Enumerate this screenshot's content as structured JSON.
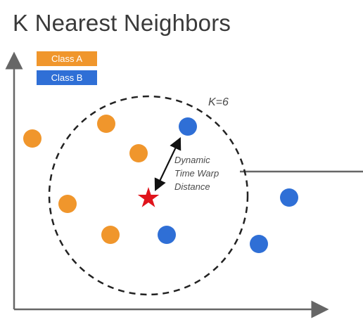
{
  "title": "K Nearest Neighbors",
  "legend": [
    {
      "label": "Class A",
      "color": "#f0962c"
    },
    {
      "label": "Class B",
      "color": "#2f6fd6"
    }
  ],
  "k_label": "K=6",
  "distance_label": [
    "Dynamic",
    "Time Warp",
    "Distance"
  ],
  "query_marker": {
    "shape": "star",
    "color": "#e0141c"
  },
  "colors": {
    "axis": "#666666",
    "circle": "#222222",
    "arrow": "#111111"
  }
}
